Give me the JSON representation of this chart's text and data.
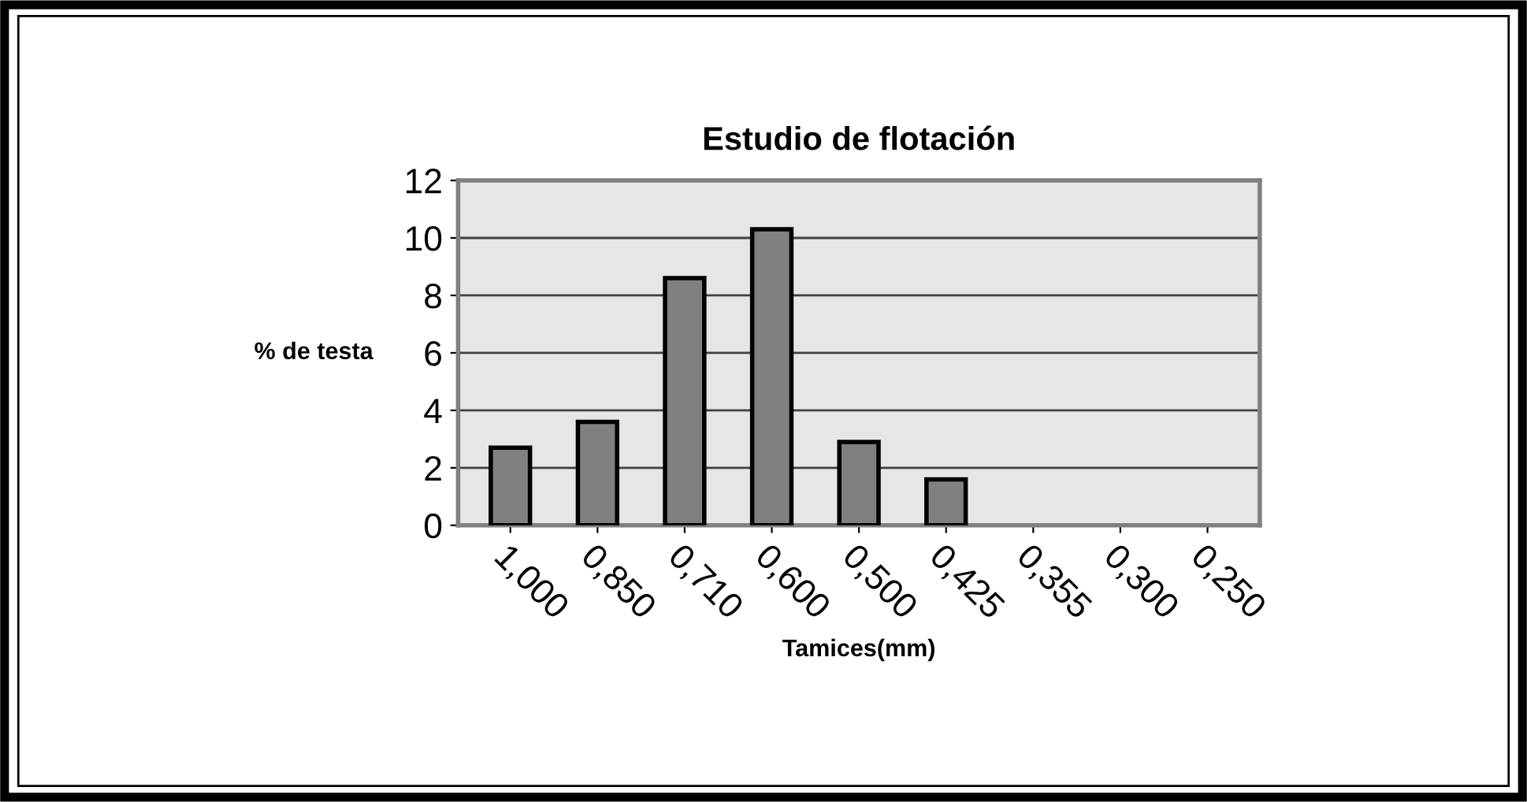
{
  "chart_data": {
    "type": "bar",
    "title": "Estudio de flotación",
    "xlabel": "Tamices(mm)",
    "ylabel": "% de testa",
    "categories": [
      "1,000",
      "0,850",
      "0,710",
      "0,600",
      "0,500",
      "0,425",
      "0,355",
      "0,300",
      "0,250"
    ],
    "values": [
      2.7,
      3.6,
      8.6,
      10.3,
      2.9,
      1.6,
      0,
      0,
      0
    ],
    "color": "#808080",
    "ylim": [
      0,
      12
    ],
    "yticks": [
      0,
      2,
      4,
      6,
      8,
      10,
      12
    ],
    "grid": "y",
    "legend": false
  }
}
